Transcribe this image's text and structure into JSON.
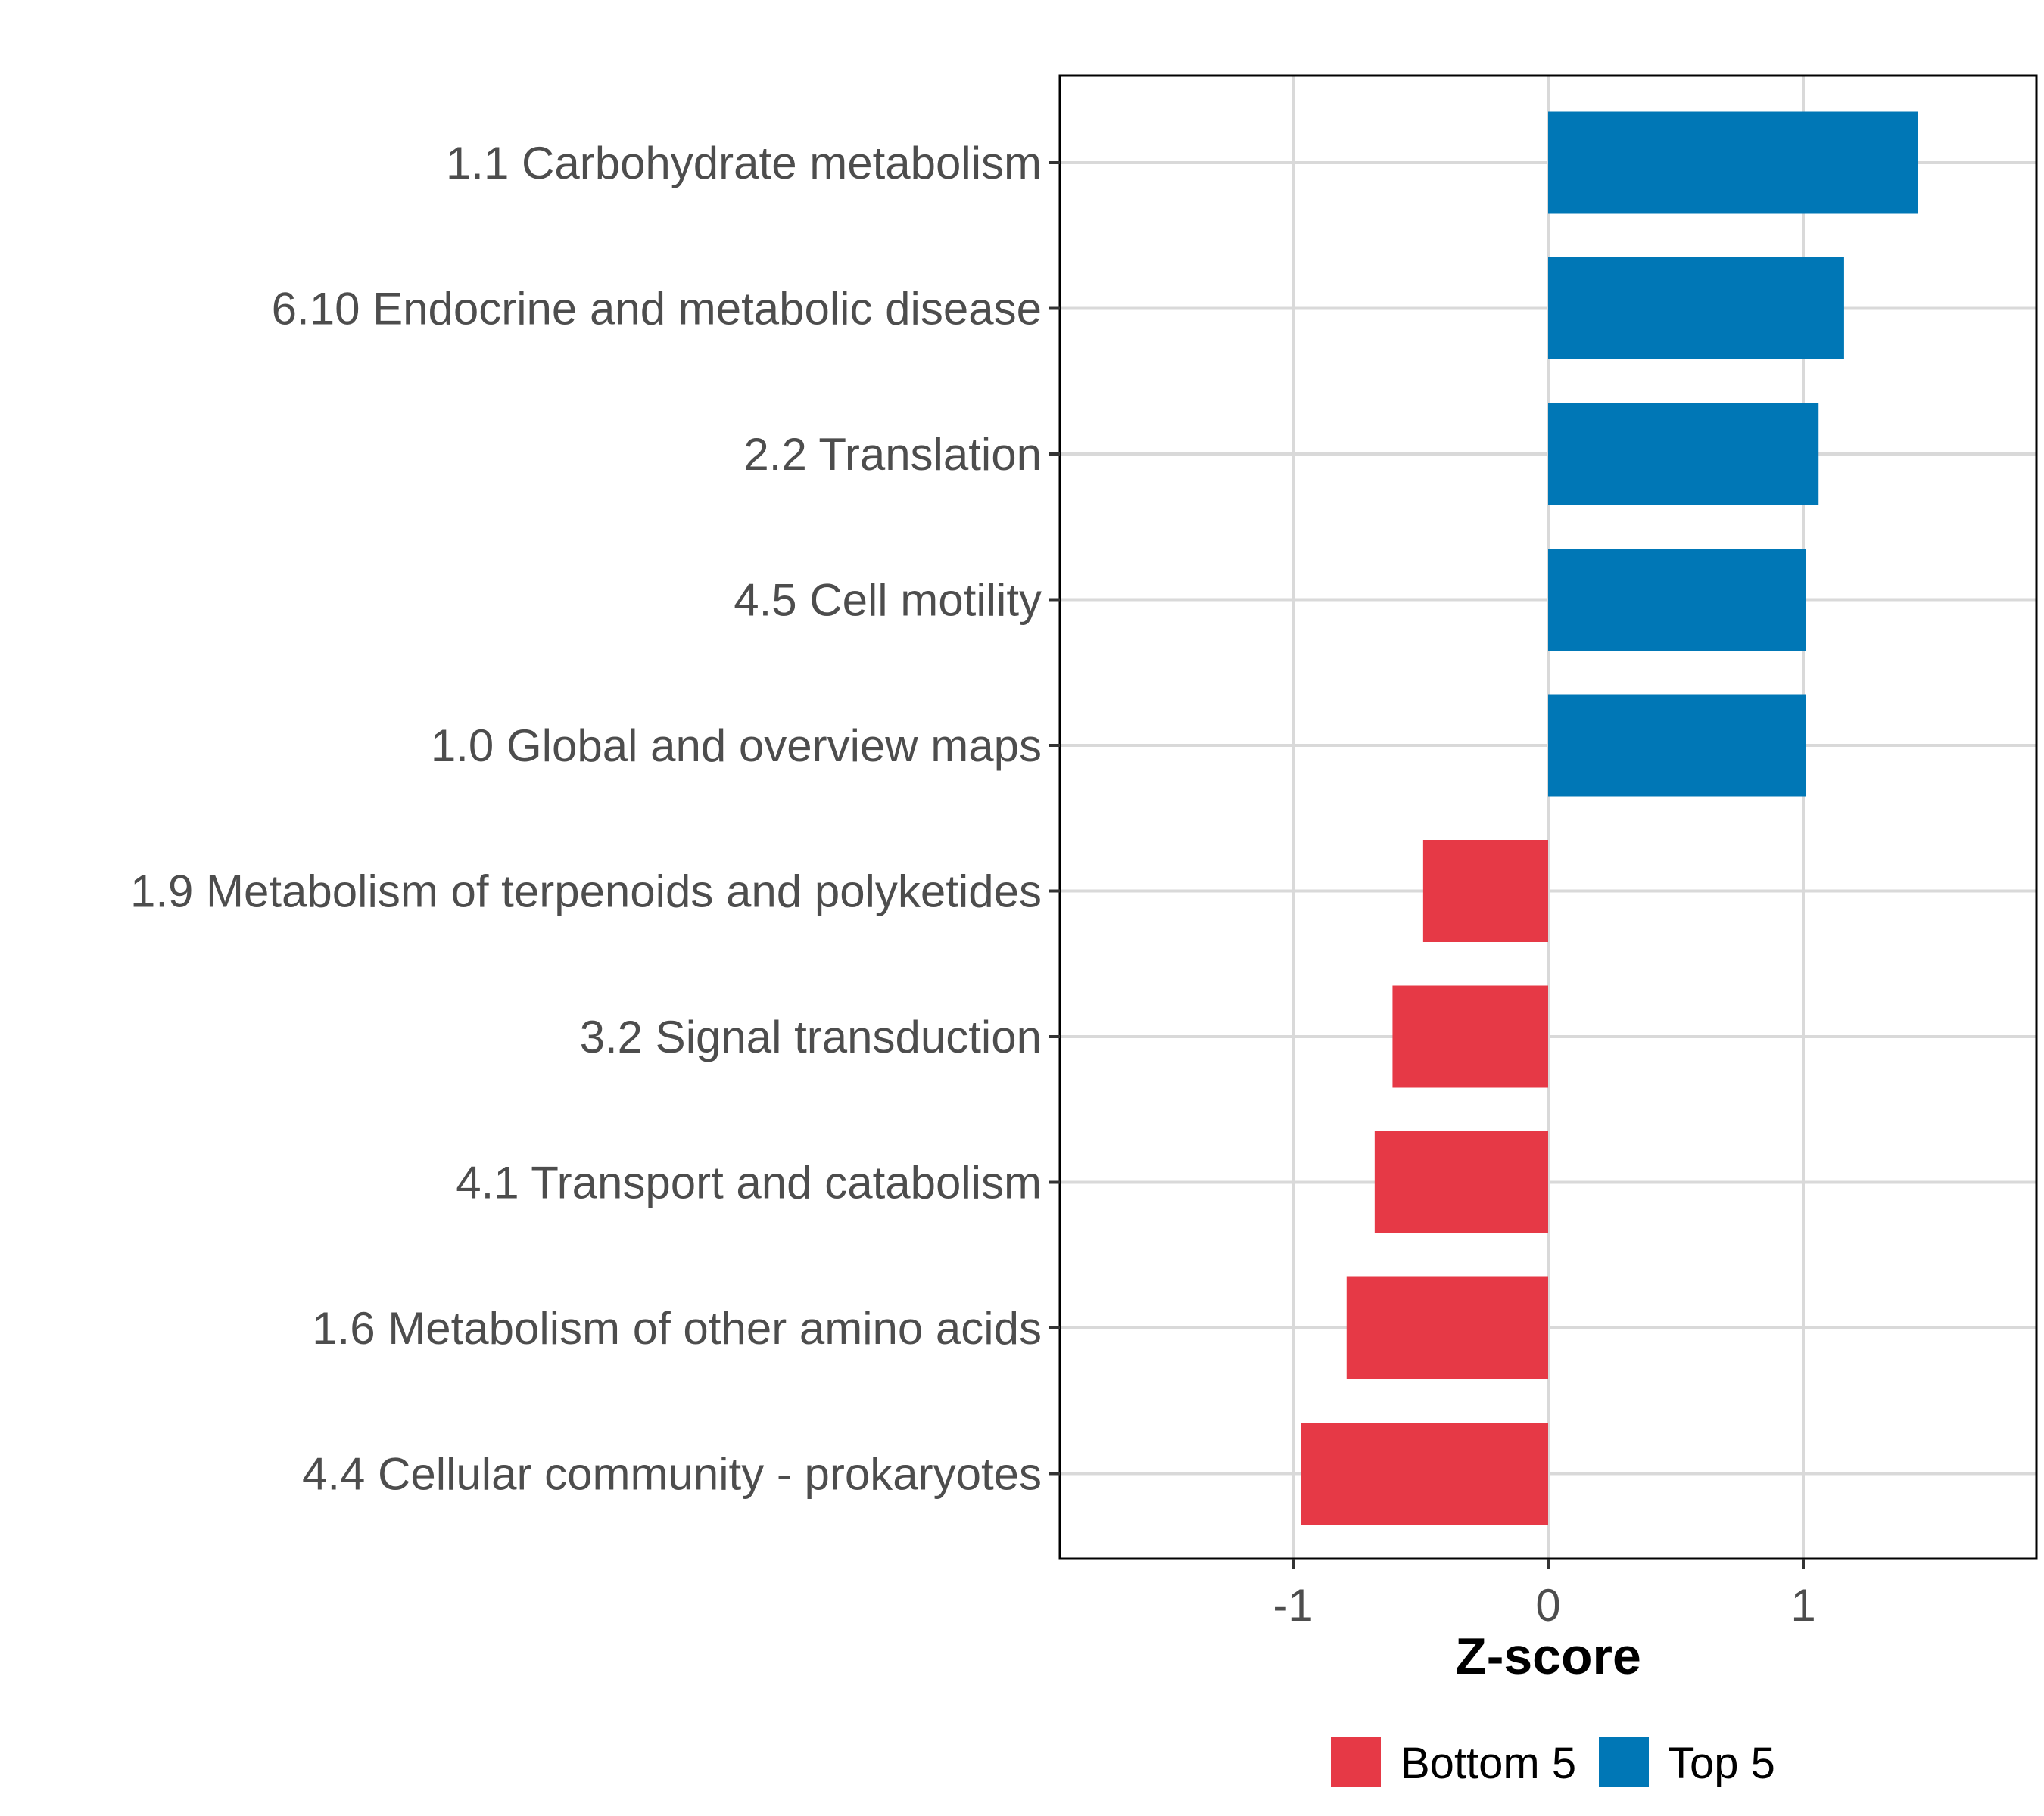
{
  "chart_data": {
    "type": "bar",
    "orientation": "horizontal",
    "title": "",
    "xlabel": "Z-score",
    "ylabel": "",
    "xlim": [
      -1.92,
      1.92
    ],
    "xticks": [
      {
        "value": -1,
        "label": "-1"
      },
      {
        "value": 0,
        "label": "0"
      },
      {
        "value": 1,
        "label": "1"
      }
    ],
    "grid": true,
    "legend_position": "bottom",
    "legend": [
      {
        "name": "Bottom 5",
        "color": "#E63946"
      },
      {
        "name": "Top 5",
        "color": "#0077B6"
      }
    ],
    "categories": [
      "1.1 Carbohydrate metabolism",
      "6.10 Endocrine and metabolic disease",
      "2.2 Translation",
      "4.5 Cell motility",
      "1.0 Global and overview maps",
      "1.9 Metabolism of terpenoids and polyketides",
      "3.2 Signal transduction",
      "4.1 Transport and catabolism",
      "1.6 Metabolism of other amino acids",
      "4.4 Cellular community - prokaryotes"
    ],
    "values": [
      1.45,
      1.16,
      1.06,
      1.01,
      1.01,
      -0.49,
      -0.61,
      -0.68,
      -0.79,
      -0.97
    ],
    "groups": [
      "Top 5",
      "Top 5",
      "Top 5",
      "Top 5",
      "Top 5",
      "Bottom 5",
      "Bottom 5",
      "Bottom 5",
      "Bottom 5",
      "Bottom 5"
    ]
  }
}
